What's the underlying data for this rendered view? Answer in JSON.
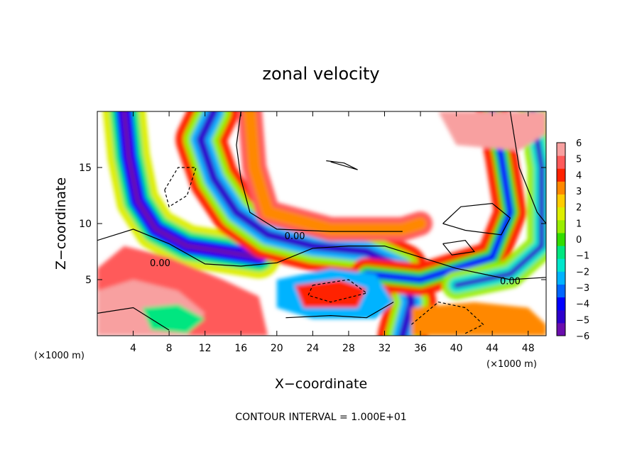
{
  "chart_data": {
    "type": "heatmap",
    "title": "zonal velocity",
    "xlabel": "X−coordinate",
    "ylabel": "Z−coordinate",
    "x_unit_left": "(×1000 m)",
    "x_unit_right": "(×1000 m)",
    "xlim": [
      0,
      50
    ],
    "ylim": [
      0,
      20
    ],
    "xticks": [
      4,
      8,
      12,
      16,
      20,
      24,
      28,
      32,
      36,
      40,
      44,
      48
    ],
    "yticks": [
      5,
      10,
      15
    ],
    "colorbar": {
      "min": -6,
      "max": 6,
      "ticks": [
        6,
        5,
        4,
        3,
        2,
        1,
        0,
        -1,
        -2,
        -3,
        -4,
        -5,
        -6
      ],
      "colors": [
        "#6a0dad",
        "#2d00cc",
        "#0000ff",
        "#0066ff",
        "#00b3ff",
        "#00e6cc",
        "#00e680",
        "#33dd00",
        "#99ee00",
        "#ddee00",
        "#ffcc00",
        "#ff8800",
        "#ff2200",
        "#ff5a5a",
        "#f8a0a0"
      ]
    },
    "contour_labels": [
      "0.00",
      "0.00",
      "0.00"
    ],
    "contour_interval_text": "CONTOUR INTERVAL = 1.000E+01"
  }
}
